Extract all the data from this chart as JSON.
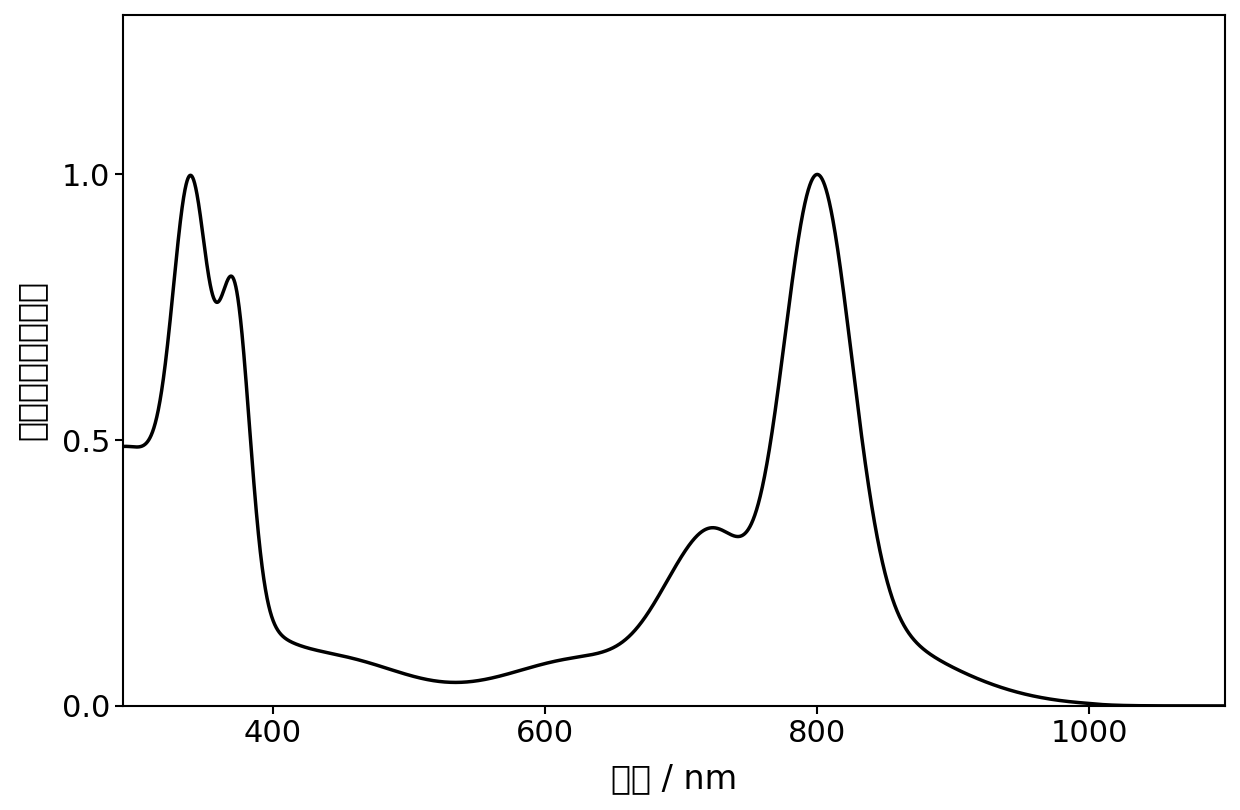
{
  "xlabel": "波长 / nm",
  "ylabel": "吸光度（归一化）",
  "xlim": [
    290,
    1100
  ],
  "ylim": [
    0.0,
    1.3
  ],
  "xticks": [
    400,
    600,
    800,
    1000
  ],
  "yticks": [
    0.0,
    0.5,
    1.0
  ],
  "ytick_labels": [
    "0.0",
    "0.5",
    "1.0"
  ],
  "line_color": "#000000",
  "line_width": 2.5,
  "background_color": "#ffffff",
  "xlabel_fontsize": 24,
  "ylabel_fontsize": 24,
  "tick_fontsize": 22
}
